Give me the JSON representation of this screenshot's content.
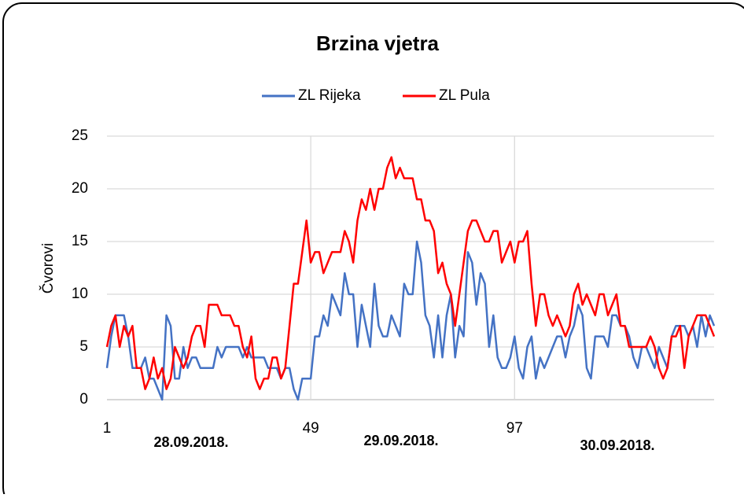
{
  "chart_data": {
    "type": "line",
    "title": "Brzina vjetra",
    "ylabel": "Čvorovi",
    "annotations": [
      "28.09.2018.",
      "29.09.2018.",
      "30.09.2018."
    ],
    "x": [
      1,
      2,
      3,
      4,
      5,
      6,
      7,
      8,
      9,
      10,
      11,
      12,
      13,
      14,
      15,
      16,
      17,
      18,
      19,
      20,
      21,
      22,
      23,
      24,
      25,
      26,
      27,
      28,
      29,
      30,
      31,
      32,
      33,
      34,
      35,
      36,
      37,
      38,
      39,
      40,
      41,
      42,
      43,
      44,
      45,
      46,
      47,
      48,
      49,
      50,
      51,
      52,
      53,
      54,
      55,
      56,
      57,
      58,
      59,
      60,
      61,
      62,
      63,
      64,
      65,
      66,
      67,
      68,
      69,
      70,
      71,
      72,
      73,
      74,
      75,
      76,
      77,
      78,
      79,
      80,
      81,
      82,
      83,
      84,
      85,
      86,
      87,
      88,
      89,
      90,
      91,
      92,
      93,
      94,
      95,
      96,
      97,
      98,
      99,
      100,
      101,
      102,
      103,
      104,
      105,
      106,
      107,
      108,
      109,
      110,
      111,
      112,
      113,
      114,
      115,
      116,
      117,
      118,
      119,
      120,
      121,
      122,
      123,
      124,
      125,
      126,
      127,
      128,
      129,
      130,
      131,
      132,
      133,
      134,
      135,
      136,
      137,
      138,
      139,
      140,
      141,
      142,
      143,
      144
    ],
    "series": [
      {
        "name": "ZL Rijeka",
        "color": "#4472c4",
        "values": [
          3,
          6,
          8,
          8,
          8,
          6,
          3,
          3,
          3,
          4,
          2,
          2,
          1,
          0,
          8,
          7,
          2,
          2,
          5,
          3,
          4,
          4,
          3,
          3,
          3,
          3,
          5,
          4,
          5,
          5,
          5,
          5,
          4,
          5,
          4,
          4,
          4,
          4,
          3,
          3,
          3,
          2,
          3,
          3,
          1,
          0,
          2,
          2,
          2,
          6,
          6,
          8,
          7,
          10,
          9,
          8,
          12,
          10,
          10,
          5,
          9,
          7,
          5,
          11,
          7,
          6,
          6,
          8,
          7,
          6,
          11,
          10,
          10,
          15,
          13,
          8,
          7,
          4,
          8,
          4,
          8,
          10,
          4,
          7,
          6,
          14,
          13,
          9,
          12,
          11,
          5,
          8,
          4,
          3,
          3,
          4,
          6,
          3,
          2,
          5,
          6,
          2,
          4,
          3,
          4,
          5,
          6,
          6,
          4,
          6,
          7,
          9,
          8,
          3,
          2,
          6,
          6,
          6,
          5,
          8,
          8,
          7,
          7,
          6,
          4,
          3,
          5,
          5,
          4,
          3,
          5,
          4,
          3,
          6,
          7,
          7,
          7,
          6,
          7,
          5,
          8,
          6,
          8,
          7
        ]
      },
      {
        "name": "ZL Pula",
        "color": "#ff0000",
        "values": [
          5,
          7,
          8,
          5,
          7,
          6,
          7,
          3,
          3,
          1,
          2,
          4,
          2,
          3,
          1,
          2,
          5,
          4,
          3,
          4,
          6,
          7,
          7,
          5,
          9,
          9,
          9,
          8,
          8,
          8,
          7,
          7,
          5,
          4,
          6,
          2,
          1,
          2,
          2,
          4,
          4,
          2,
          3,
          7,
          11,
          11,
          14,
          17,
          13,
          14,
          14,
          12,
          13,
          14,
          14,
          14,
          16,
          15,
          13,
          17,
          19,
          18,
          20,
          18,
          20,
          20,
          22,
          23,
          21,
          22,
          21,
          21,
          21,
          19,
          19,
          17,
          17,
          16,
          12,
          13,
          11,
          10,
          7,
          10,
          13,
          16,
          17,
          17,
          16,
          15,
          15,
          16,
          16,
          13,
          14,
          15,
          13,
          15,
          15,
          16,
          11,
          7,
          10,
          10,
          8,
          7,
          8,
          7,
          6,
          7,
          10,
          11,
          9,
          10,
          9,
          8,
          10,
          10,
          8,
          9,
          10,
          7,
          7,
          5,
          5,
          5,
          5,
          5,
          6,
          5,
          3,
          2,
          3,
          6,
          6,
          7,
          3,
          6,
          7,
          8,
          8,
          8,
          7,
          6
        ]
      }
    ],
    "xlim": [
      1,
      144
    ],
    "xticks": [
      1,
      49,
      97
    ],
    "ylim": [
      0,
      25
    ],
    "yticks": [
      0,
      5,
      10,
      15,
      20,
      25
    ],
    "grid": true,
    "legend": "top"
  }
}
